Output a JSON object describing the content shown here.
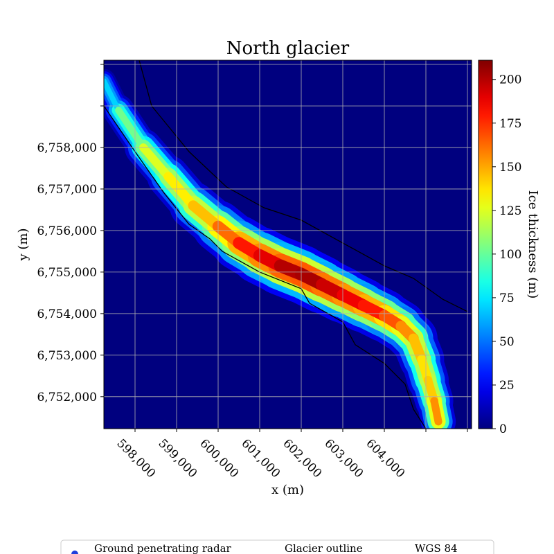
{
  "chart_data": {
    "type": "heatmap",
    "title": "North glacier",
    "xlabel": "x (m)",
    "ylabel": "y (m)",
    "xlim": [
      597250,
      606100
    ],
    "ylim": [
      6751230,
      6760100
    ],
    "x_ticks": [
      598000,
      599000,
      600000,
      601000,
      602000,
      603000,
      604000,
      605000,
      606000
    ],
    "x_tick_labels": [
      "598,000",
      "599,000",
      "600,000",
      "601,000",
      "602,000",
      "603,000",
      "604,000",
      "",
      ""
    ],
    "y_ticks": [
      6752000,
      6753000,
      6754000,
      6755000,
      6756000,
      6757000,
      6758000,
      6759000,
      6760000
    ],
    "y_tick_labels": [
      "6,752,000",
      "6,753,000",
      "6,754,000",
      "6,755,000",
      "6,756,000",
      "6,757,000",
      "6,758,000",
      "",
      ""
    ],
    "grid": true,
    "colormap": "jet",
    "background_value": 0,
    "colorbar": {
      "label": "Ice thickness (m)",
      "range": [
        0,
        211
      ],
      "ticks": [
        0,
        25,
        50,
        75,
        100,
        125,
        150,
        175,
        200
      ],
      "tick_labels": [
        "0",
        "25",
        "50",
        "75",
        "100",
        "125",
        "150",
        "175",
        "200"
      ]
    },
    "centerline": [
      [
        597250,
        6759600
      ],
      [
        597600,
        6758900
      ],
      [
        598200,
        6758000
      ],
      [
        598800,
        6757300
      ],
      [
        599400,
        6756600
      ],
      [
        600000,
        6756100
      ],
      [
        600500,
        6755700
      ],
      [
        601000,
        6755400
      ],
      [
        601500,
        6755150
      ],
      [
        602000,
        6754950
      ],
      [
        602500,
        6754700
      ],
      [
        603000,
        6754450
      ],
      [
        603500,
        6754200
      ],
      [
        604000,
        6753950
      ],
      [
        604400,
        6753700
      ],
      [
        604700,
        6753400
      ],
      [
        604900,
        6752900
      ],
      [
        605050,
        6752400
      ],
      [
        605200,
        6751900
      ],
      [
        605300,
        6751400
      ]
    ],
    "half_width": [
      250,
      330,
      420,
      480,
      540,
      600,
      640,
      680,
      700,
      700,
      680,
      660,
      640,
      620,
      600,
      560,
      520,
      480,
      440,
      400
    ],
    "thickness": [
      55,
      85,
      120,
      130,
      140,
      150,
      175,
      185,
      195,
      205,
      200,
      190,
      185,
      175,
      160,
      150,
      140,
      135,
      150,
      160
    ],
    "glacier_outline": [
      [
        [
          598100,
          6760100
        ],
        [
          598400,
          6759000
        ],
        [
          599300,
          6757900
        ],
        [
          600200,
          6757050
        ],
        [
          601100,
          6756550
        ],
        [
          602000,
          6756250
        ],
        [
          603000,
          6755700
        ],
        [
          604000,
          6755150
        ],
        [
          604700,
          6754850
        ],
        [
          605400,
          6754350
        ],
        [
          606000,
          6754050
        ]
      ],
      [
        [
          597250,
          6759000
        ],
        [
          598000,
          6757900
        ],
        [
          598700,
          6756900
        ],
        [
          599300,
          6756150
        ],
        [
          599800,
          6755800
        ],
        [
          600100,
          6755500
        ],
        [
          601000,
          6755000
        ],
        [
          602000,
          6754600
        ],
        [
          602200,
          6754250
        ],
        [
          603000,
          6753800
        ],
        [
          603300,
          6753250
        ],
        [
          604000,
          6752800
        ],
        [
          604500,
          6752300
        ],
        [
          604700,
          6751700
        ],
        [
          605000,
          6751230
        ]
      ]
    ],
    "legend": {
      "placement": "bottom",
      "entries": [
        "Ground penetrating radar",
        "Glacier outline",
        "WGS 84"
      ]
    }
  }
}
